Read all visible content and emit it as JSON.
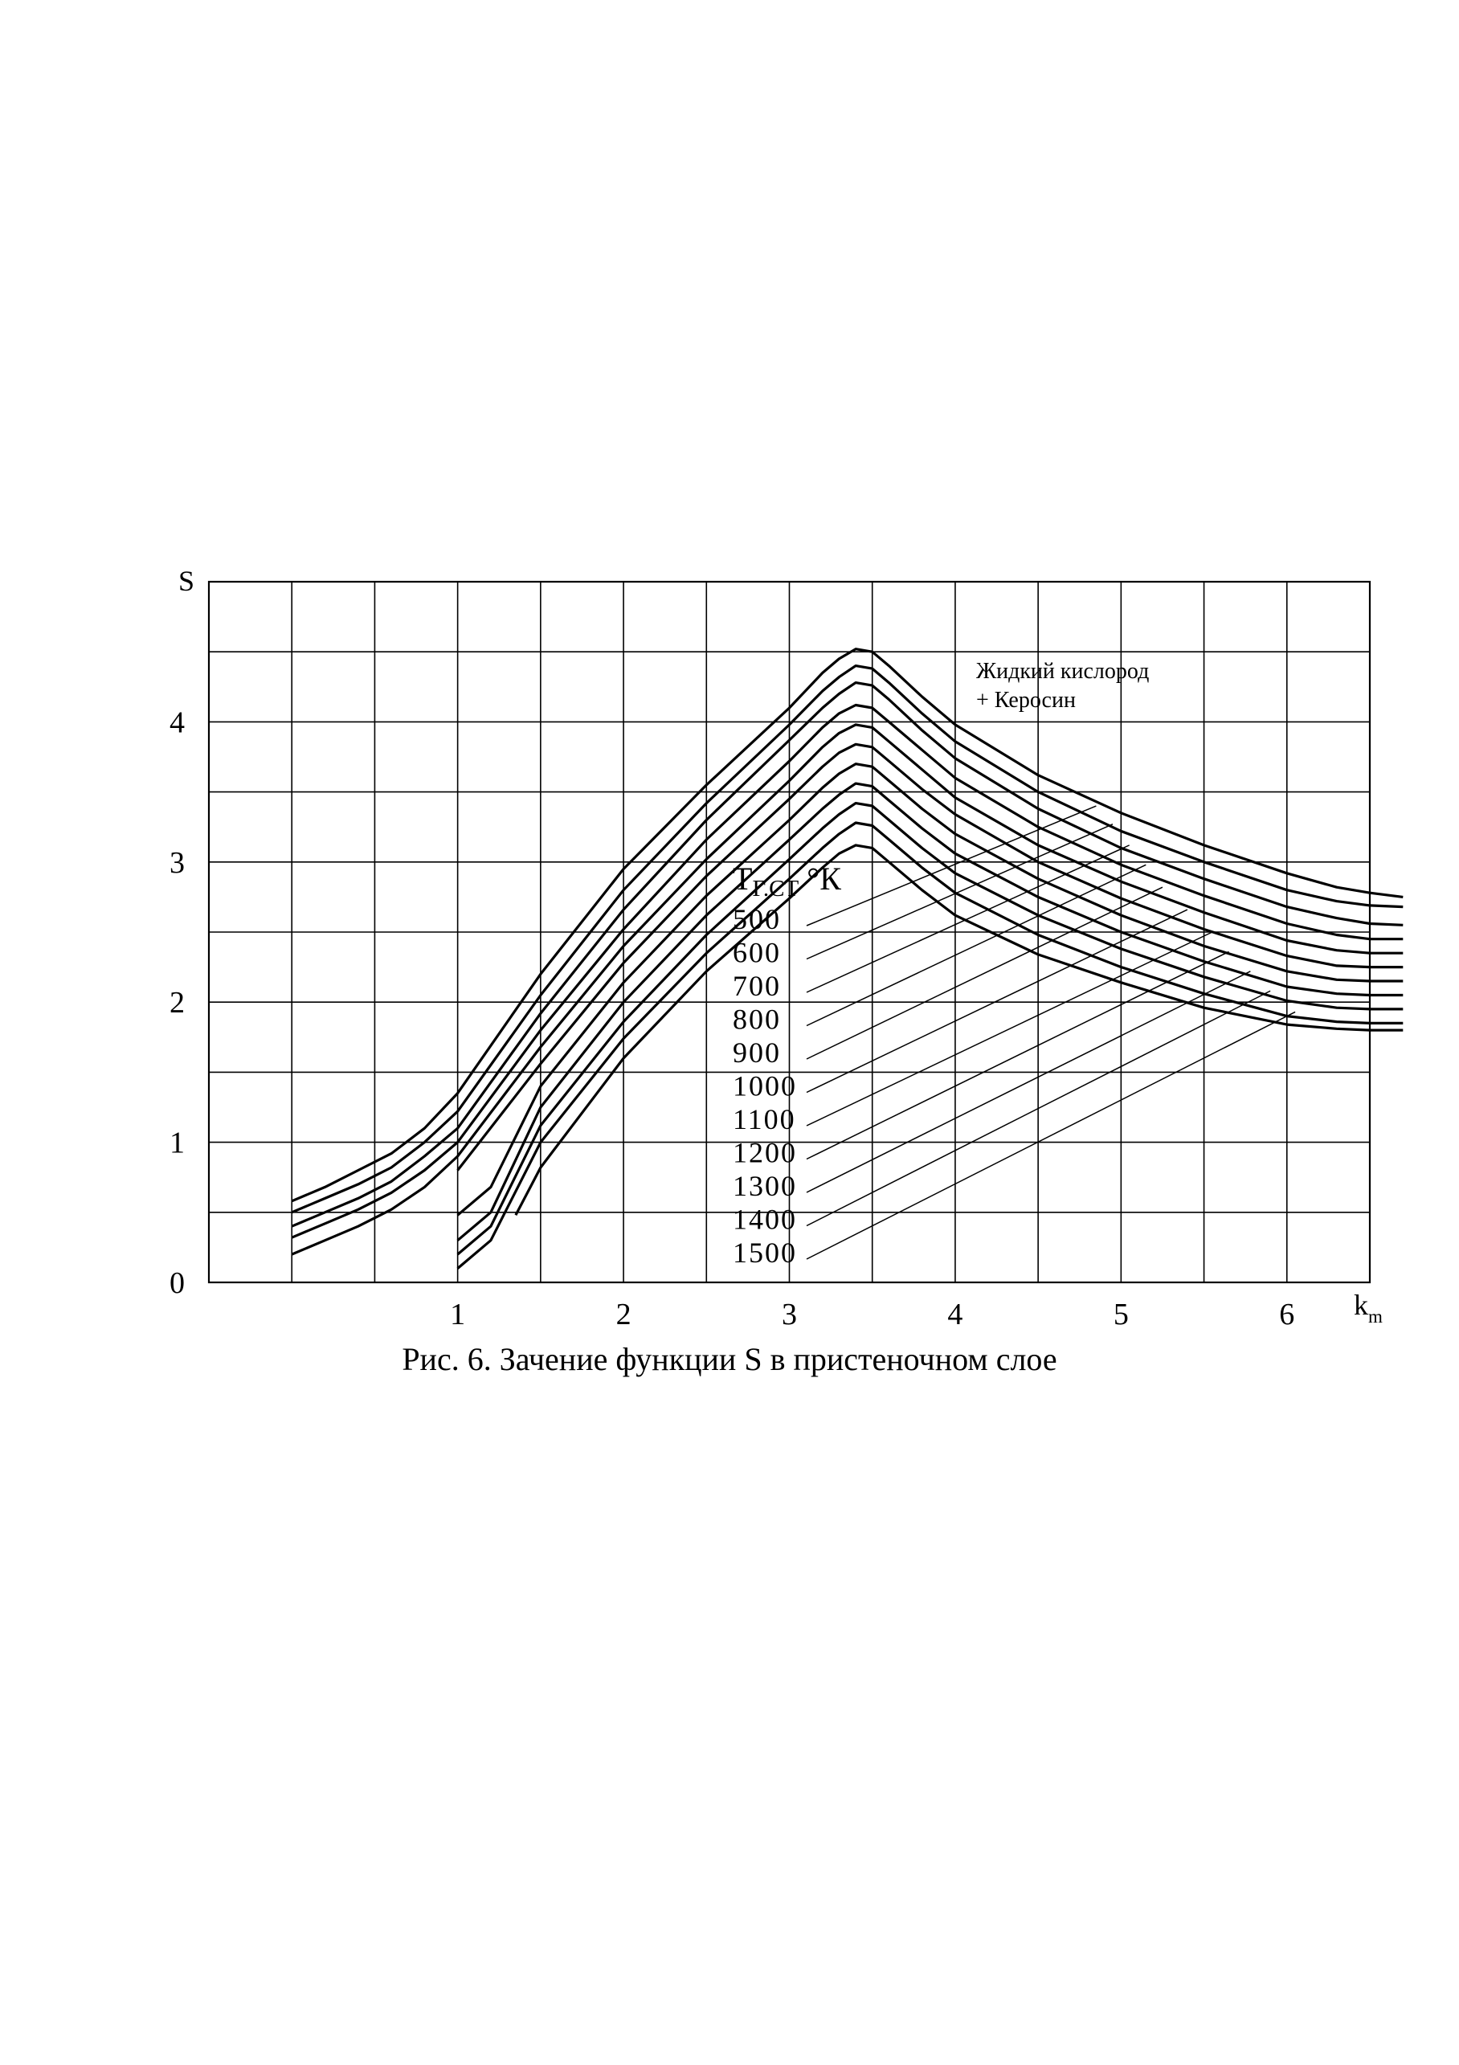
{
  "caption": "Рис. 6. Зачение функции S в пристеночном слое",
  "chart_data": {
    "type": "line",
    "title": "",
    "xlabel": "k",
    "xlabel_sub": "m",
    "ylabel": "S",
    "xlim": [
      -0.5,
      6.5
    ],
    "ylim": [
      0,
      5
    ],
    "grid": true,
    "x_ticks": [
      {
        "value": 1,
        "label": "1"
      },
      {
        "value": 2,
        "label": "2"
      },
      {
        "value": 3,
        "label": "3"
      },
      {
        "value": 4,
        "label": "4"
      },
      {
        "value": 5,
        "label": "5"
      },
      {
        "value": 6,
        "label": "6"
      }
    ],
    "y_ticks": [
      {
        "value": 0,
        "label": "0"
      },
      {
        "value": 1,
        "label": "1"
      },
      {
        "value": 2,
        "label": "2"
      },
      {
        "value": 3,
        "label": "3"
      },
      {
        "value": 4,
        "label": "4"
      }
    ],
    "annotation": {
      "line1": "Жидкий кислород",
      "line2": "+ Керосин"
    },
    "legend_title": {
      "main": "T",
      "sub": "Г.СТ",
      "unit": "°К"
    },
    "series": [
      {
        "name": "500",
        "label_point": {
          "x": 4.85,
          "y": 3.4
        },
        "points": [
          [
            0,
            0.58
          ],
          [
            0.2,
            0.68
          ],
          [
            0.4,
            0.8
          ],
          [
            0.6,
            0.92
          ],
          [
            0.8,
            1.1
          ],
          [
            1.0,
            1.35
          ],
          [
            1.5,
            2.2
          ],
          [
            2.0,
            2.95
          ],
          [
            2.5,
            3.55
          ],
          [
            3.0,
            4.1
          ],
          [
            3.2,
            4.35
          ],
          [
            3.3,
            4.45
          ],
          [
            3.4,
            4.52
          ],
          [
            3.5,
            4.5
          ],
          [
            3.6,
            4.4
          ],
          [
            3.8,
            4.18
          ],
          [
            4.0,
            3.98
          ],
          [
            4.5,
            3.62
          ],
          [
            5.0,
            3.35
          ],
          [
            5.5,
            3.12
          ],
          [
            6.0,
            2.92
          ],
          [
            6.3,
            2.82
          ],
          [
            6.5,
            2.78
          ],
          [
            6.7,
            2.75
          ]
        ]
      },
      {
        "name": "600",
        "label_point": {
          "x": 4.95,
          "y": 3.27
        },
        "points": [
          [
            0,
            0.5
          ],
          [
            0.2,
            0.6
          ],
          [
            0.4,
            0.7
          ],
          [
            0.6,
            0.82
          ],
          [
            0.8,
            1.0
          ],
          [
            1.0,
            1.22
          ],
          [
            1.5,
            2.05
          ],
          [
            2.0,
            2.8
          ],
          [
            2.5,
            3.42
          ],
          [
            3.0,
            3.98
          ],
          [
            3.2,
            4.22
          ],
          [
            3.3,
            4.32
          ],
          [
            3.4,
            4.4
          ],
          [
            3.5,
            4.38
          ],
          [
            3.6,
            4.28
          ],
          [
            3.8,
            4.06
          ],
          [
            4.0,
            3.86
          ],
          [
            4.5,
            3.5
          ],
          [
            5.0,
            3.22
          ],
          [
            5.5,
            3.0
          ],
          [
            6.0,
            2.8
          ],
          [
            6.3,
            2.72
          ],
          [
            6.5,
            2.69
          ],
          [
            6.7,
            2.68
          ]
        ]
      },
      {
        "name": "700",
        "label_point": {
          "x": 5.05,
          "y": 3.12
        },
        "points": [
          [
            0,
            0.4
          ],
          [
            0.2,
            0.5
          ],
          [
            0.4,
            0.6
          ],
          [
            0.6,
            0.72
          ],
          [
            0.8,
            0.9
          ],
          [
            1.0,
            1.1
          ],
          [
            1.5,
            1.92
          ],
          [
            2.0,
            2.66
          ],
          [
            2.5,
            3.3
          ],
          [
            3.0,
            3.87
          ],
          [
            3.2,
            4.1
          ],
          [
            3.3,
            4.2
          ],
          [
            3.4,
            4.28
          ],
          [
            3.5,
            4.26
          ],
          [
            3.6,
            4.16
          ],
          [
            3.8,
            3.94
          ],
          [
            4.0,
            3.74
          ],
          [
            4.5,
            3.38
          ],
          [
            5.0,
            3.1
          ],
          [
            5.5,
            2.88
          ],
          [
            6.0,
            2.68
          ],
          [
            6.3,
            2.6
          ],
          [
            6.5,
            2.56
          ],
          [
            6.7,
            2.55
          ]
        ]
      },
      {
        "name": "800",
        "label_point": {
          "x": 5.15,
          "y": 2.98
        },
        "points": [
          [
            0,
            0.32
          ],
          [
            0.2,
            0.42
          ],
          [
            0.4,
            0.52
          ],
          [
            0.6,
            0.64
          ],
          [
            0.8,
            0.8
          ],
          [
            1.0,
            1.0
          ],
          [
            1.5,
            1.8
          ],
          [
            2.0,
            2.52
          ],
          [
            2.5,
            3.16
          ],
          [
            3.0,
            3.72
          ],
          [
            3.2,
            3.96
          ],
          [
            3.3,
            4.06
          ],
          [
            3.4,
            4.12
          ],
          [
            3.5,
            4.1
          ],
          [
            3.6,
            4.0
          ],
          [
            3.8,
            3.8
          ],
          [
            4.0,
            3.6
          ],
          [
            4.5,
            3.25
          ],
          [
            5.0,
            2.98
          ],
          [
            5.5,
            2.76
          ],
          [
            6.0,
            2.56
          ],
          [
            6.3,
            2.48
          ],
          [
            6.5,
            2.45
          ],
          [
            6.7,
            2.45
          ]
        ]
      },
      {
        "name": "900",
        "label_point": {
          "x": 5.25,
          "y": 2.82
        },
        "points": [
          [
            0,
            0.2
          ],
          [
            0.2,
            0.3
          ],
          [
            0.4,
            0.4
          ],
          [
            0.6,
            0.52
          ],
          [
            0.8,
            0.68
          ],
          [
            1.0,
            0.9
          ],
          [
            1.5,
            1.68
          ],
          [
            2.0,
            2.4
          ],
          [
            2.5,
            3.02
          ],
          [
            3.0,
            3.58
          ],
          [
            3.2,
            3.82
          ],
          [
            3.3,
            3.92
          ],
          [
            3.4,
            3.98
          ],
          [
            3.5,
            3.96
          ],
          [
            3.6,
            3.86
          ],
          [
            3.8,
            3.66
          ],
          [
            4.0,
            3.46
          ],
          [
            4.5,
            3.12
          ],
          [
            5.0,
            2.86
          ],
          [
            5.5,
            2.64
          ],
          [
            6.0,
            2.44
          ],
          [
            6.3,
            2.37
          ],
          [
            6.5,
            2.35
          ],
          [
            6.7,
            2.35
          ]
        ]
      },
      {
        "name": "1000",
        "label_point": {
          "x": 5.4,
          "y": 2.66
        },
        "points": [
          [
            1.0,
            0.8
          ],
          [
            1.5,
            1.56
          ],
          [
            2.0,
            2.28
          ],
          [
            2.5,
            2.9
          ],
          [
            3.0,
            3.45
          ],
          [
            3.2,
            3.68
          ],
          [
            3.3,
            3.78
          ],
          [
            3.4,
            3.84
          ],
          [
            3.5,
            3.82
          ],
          [
            3.6,
            3.72
          ],
          [
            3.8,
            3.52
          ],
          [
            4.0,
            3.34
          ],
          [
            4.5,
            3.0
          ],
          [
            5.0,
            2.74
          ],
          [
            5.5,
            2.52
          ],
          [
            6.0,
            2.33
          ],
          [
            6.3,
            2.26
          ],
          [
            6.5,
            2.25
          ],
          [
            6.7,
            2.25
          ]
        ]
      },
      {
        "name": "1100",
        "label_point": {
          "x": 5.55,
          "y": 2.5
        },
        "points": [
          [
            1.0,
            0.48
          ],
          [
            1.2,
            0.68
          ],
          [
            1.5,
            1.4
          ],
          [
            2.0,
            2.14
          ],
          [
            2.5,
            2.76
          ],
          [
            3.0,
            3.3
          ],
          [
            3.2,
            3.53
          ],
          [
            3.3,
            3.63
          ],
          [
            3.4,
            3.7
          ],
          [
            3.5,
            3.68
          ],
          [
            3.6,
            3.58
          ],
          [
            3.8,
            3.38
          ],
          [
            4.0,
            3.2
          ],
          [
            4.5,
            2.88
          ],
          [
            5.0,
            2.62
          ],
          [
            5.5,
            2.4
          ],
          [
            6.0,
            2.22
          ],
          [
            6.3,
            2.16
          ],
          [
            6.5,
            2.15
          ],
          [
            6.7,
            2.15
          ]
        ]
      },
      {
        "name": "1200",
        "label_point": {
          "x": 5.65,
          "y": 2.36
        },
        "points": [
          [
            1.0,
            0.3
          ],
          [
            1.2,
            0.5
          ],
          [
            1.5,
            1.25
          ],
          [
            2.0,
            2.0
          ],
          [
            2.5,
            2.62
          ],
          [
            3.0,
            3.16
          ],
          [
            3.2,
            3.38
          ],
          [
            3.3,
            3.48
          ],
          [
            3.4,
            3.56
          ],
          [
            3.5,
            3.54
          ],
          [
            3.6,
            3.44
          ],
          [
            3.8,
            3.24
          ],
          [
            4.0,
            3.06
          ],
          [
            4.5,
            2.75
          ],
          [
            5.0,
            2.5
          ],
          [
            5.5,
            2.29
          ],
          [
            6.0,
            2.11
          ],
          [
            6.3,
            2.06
          ],
          [
            6.5,
            2.05
          ],
          [
            6.7,
            2.05
          ]
        ]
      },
      {
        "name": "1300",
        "label_point": {
          "x": 5.78,
          "y": 2.22
        },
        "points": [
          [
            1.0,
            0.2
          ],
          [
            1.2,
            0.4
          ],
          [
            1.5,
            1.12
          ],
          [
            2.0,
            1.86
          ],
          [
            2.5,
            2.48
          ],
          [
            3.0,
            3.02
          ],
          [
            3.2,
            3.24
          ],
          [
            3.3,
            3.34
          ],
          [
            3.4,
            3.42
          ],
          [
            3.5,
            3.4
          ],
          [
            3.6,
            3.3
          ],
          [
            3.8,
            3.1
          ],
          [
            4.0,
            2.92
          ],
          [
            4.5,
            2.62
          ],
          [
            5.0,
            2.38
          ],
          [
            5.5,
            2.18
          ],
          [
            6.0,
            2.01
          ],
          [
            6.3,
            1.96
          ],
          [
            6.5,
            1.95
          ],
          [
            6.7,
            1.95
          ]
        ]
      },
      {
        "name": "1400",
        "label_point": {
          "x": 5.9,
          "y": 2.08
        },
        "points": [
          [
            1.0,
            0.1
          ],
          [
            1.2,
            0.3
          ],
          [
            1.5,
            1.0
          ],
          [
            2.0,
            1.74
          ],
          [
            2.5,
            2.35
          ],
          [
            3.0,
            2.88
          ],
          [
            3.2,
            3.1
          ],
          [
            3.3,
            3.2
          ],
          [
            3.4,
            3.28
          ],
          [
            3.5,
            3.26
          ],
          [
            3.6,
            3.16
          ],
          [
            3.8,
            2.96
          ],
          [
            4.0,
            2.78
          ],
          [
            4.5,
            2.48
          ],
          [
            5.0,
            2.25
          ],
          [
            5.5,
            2.06
          ],
          [
            6.0,
            1.9
          ],
          [
            6.3,
            1.86
          ],
          [
            6.5,
            1.85
          ],
          [
            6.7,
            1.85
          ]
        ]
      },
      {
        "name": "1500",
        "label_point": {
          "x": 6.05,
          "y": 1.93
        },
        "points": [
          [
            1.35,
            0.48
          ],
          [
            1.5,
            0.82
          ],
          [
            2.0,
            1.6
          ],
          [
            2.5,
            2.22
          ],
          [
            3.0,
            2.74
          ],
          [
            3.2,
            2.96
          ],
          [
            3.3,
            3.06
          ],
          [
            3.4,
            3.12
          ],
          [
            3.5,
            3.1
          ],
          [
            3.6,
            3.0
          ],
          [
            3.8,
            2.8
          ],
          [
            4.0,
            2.62
          ],
          [
            4.5,
            2.34
          ],
          [
            5.0,
            2.14
          ],
          [
            5.5,
            1.96
          ],
          [
            6.0,
            1.84
          ],
          [
            6.3,
            1.81
          ],
          [
            6.5,
            1.8
          ],
          [
            6.7,
            1.8
          ]
        ]
      }
    ]
  }
}
